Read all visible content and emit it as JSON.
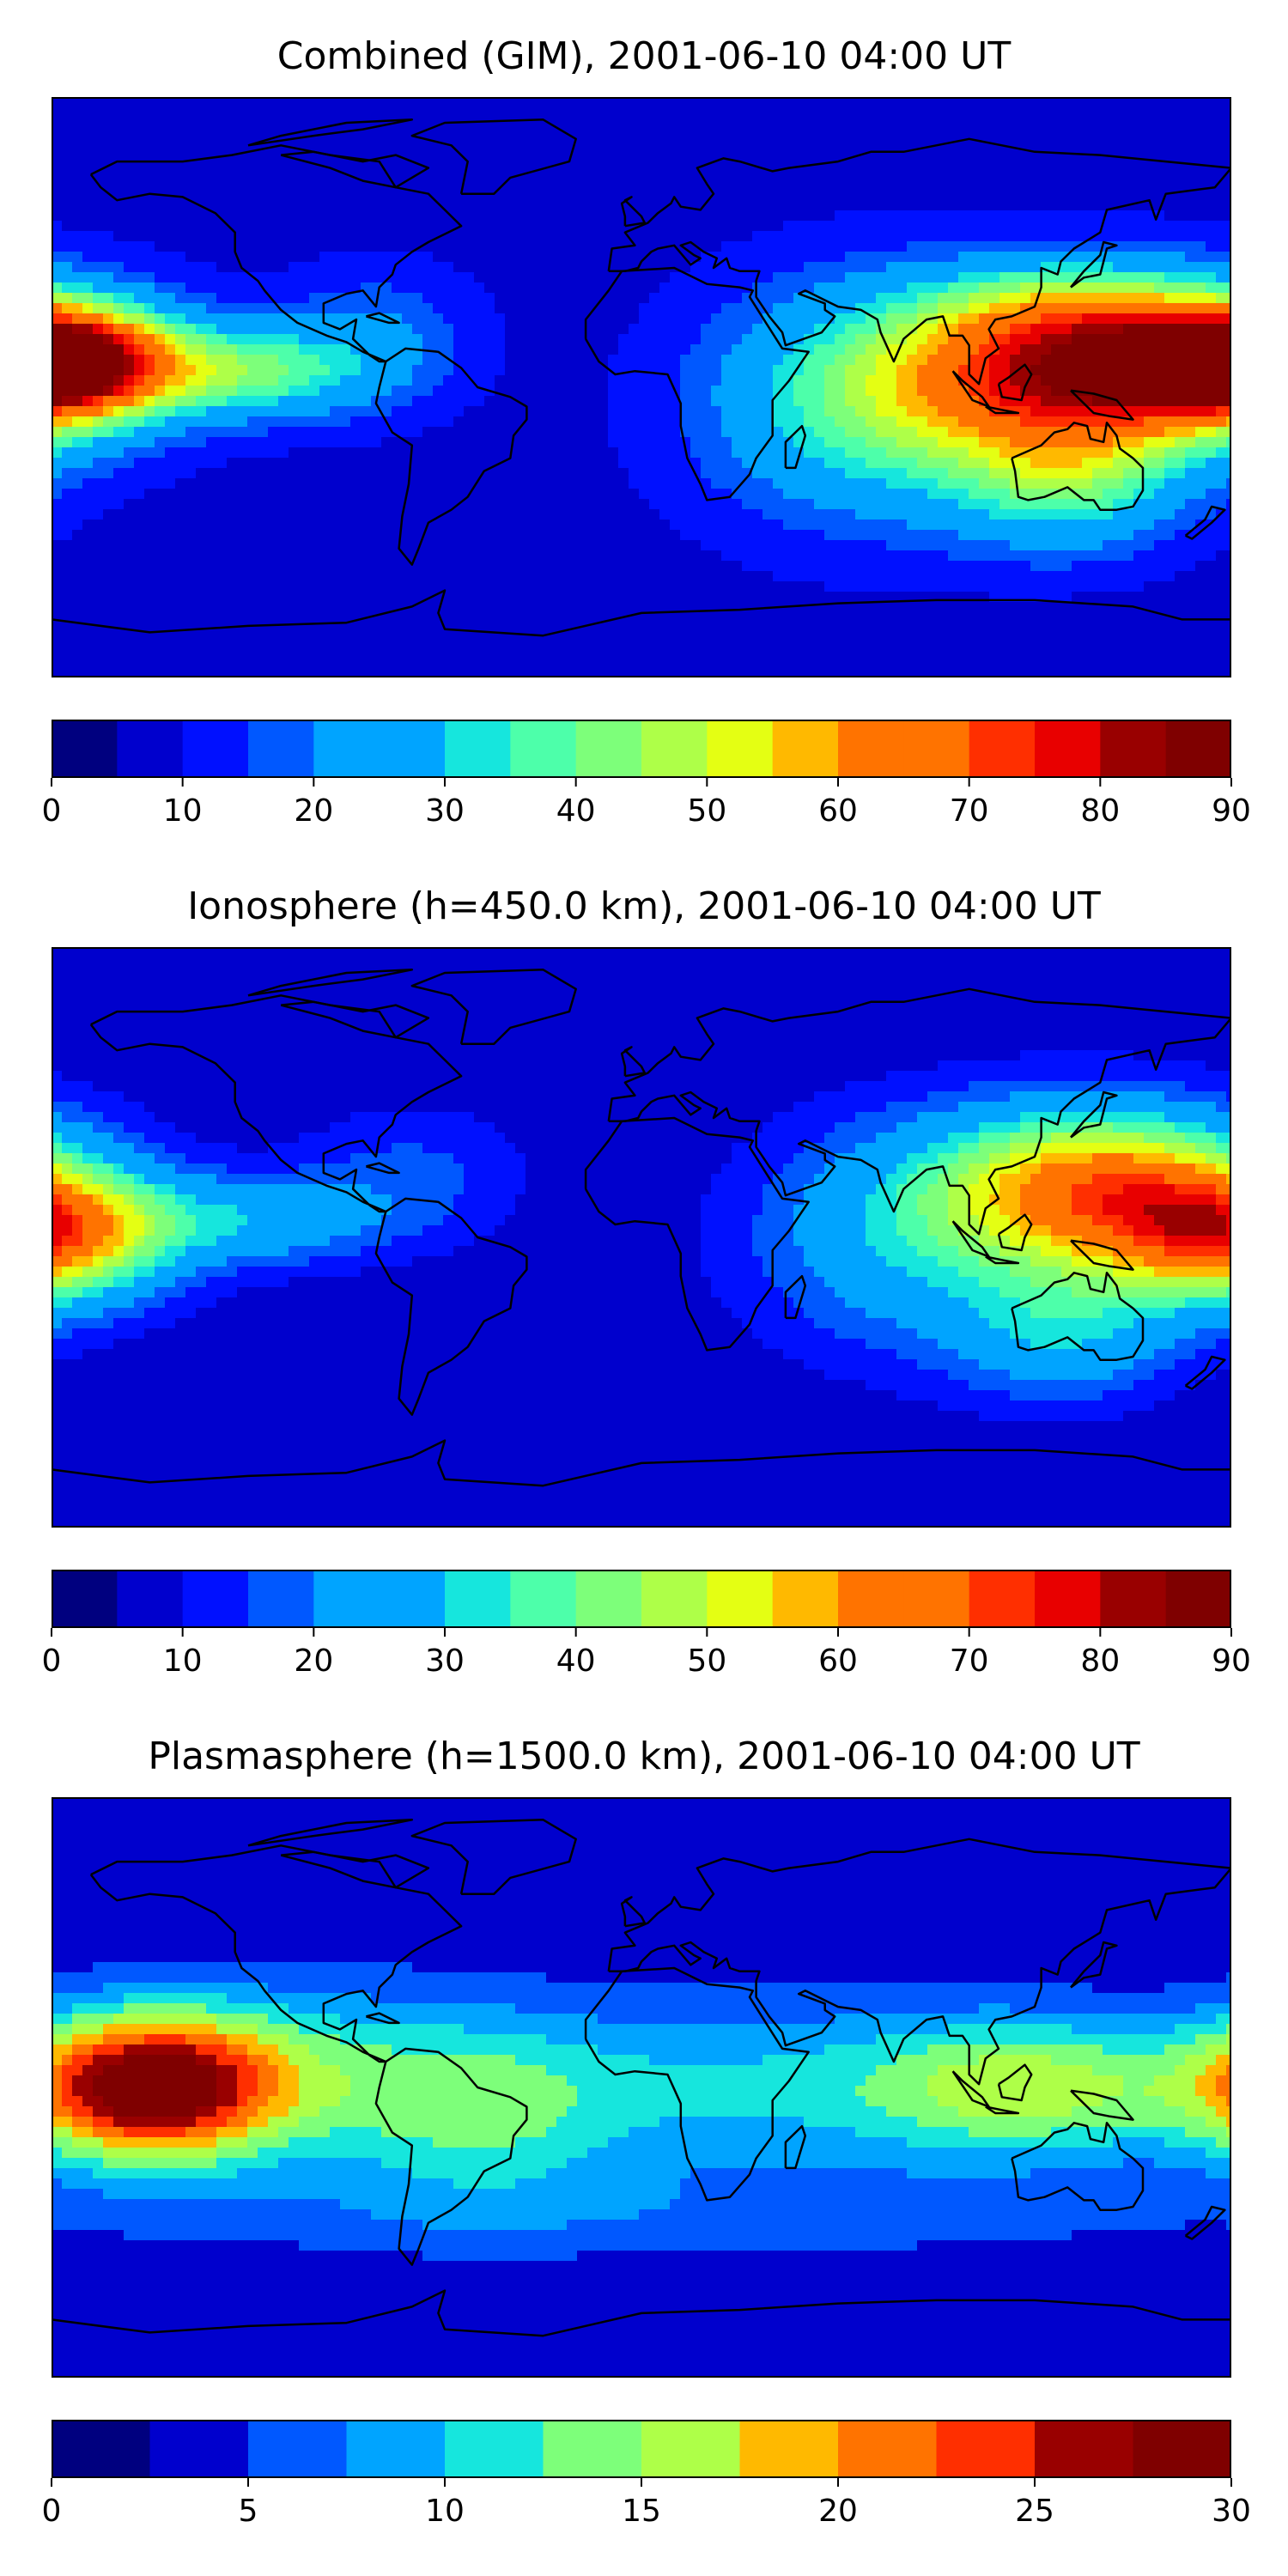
{
  "palette": [
    "#00007f",
    "#0000cd",
    "#0010ff",
    "#0058ff",
    "#00a4ff",
    "#16e6dd",
    "#4dffaa",
    "#7dff7a",
    "#aeff48",
    "#e4ff13",
    "#ffb900",
    "#ff7300",
    "#ff2f00",
    "#e80000",
    "#990000",
    "#7f0000"
  ],
  "panels": [
    {
      "title": "Combined (GIM), 2001-06-10 04:00 UT",
      "levels": [
        0,
        5,
        10,
        15,
        20,
        25,
        30,
        35,
        40,
        45,
        50,
        55,
        60,
        65,
        70,
        75,
        80,
        85,
        90
      ],
      "ticks": [
        "0",
        "10",
        "20",
        "30",
        "40",
        "50",
        "60",
        "70",
        "80",
        "90"
      ],
      "field": {
        "base": 8,
        "blobs": [
          {
            "lon": 140,
            "lat": 5,
            "slon": 40,
            "slat": 18,
            "amp": 72
          },
          {
            "lon": 130,
            "lat": 25,
            "slon": 30,
            "slat": 10,
            "amp": 15
          },
          {
            "lon": -175,
            "lat": 8,
            "slon": 22,
            "slat": 12,
            "amp": 66
          },
          {
            "lon": -120,
            "lat": 5,
            "slon": 25,
            "slat": 10,
            "amp": 30
          },
          {
            "lon": 70,
            "lat": -5,
            "slon": 35,
            "slat": 25,
            "amp": 28
          },
          {
            "lon": 130,
            "lat": -30,
            "slon": 25,
            "slat": 15,
            "amp": 25
          },
          {
            "lon": -80,
            "lat": 15,
            "slon": 20,
            "slat": 15,
            "amp": 12
          }
        ]
      }
    },
    {
      "title": "Ionosphere  (h=450.0 km), 2001-06-10 04:00 UT",
      "levels": [
        0,
        5,
        10,
        15,
        20,
        25,
        30,
        35,
        40,
        45,
        50,
        55,
        60,
        65,
        70,
        75,
        80,
        85,
        90
      ],
      "ticks": [
        "0",
        "10",
        "20",
        "30",
        "40",
        "50",
        "60",
        "70",
        "80",
        "90"
      ],
      "field": {
        "base": 6,
        "blobs": [
          {
            "lon": 140,
            "lat": 15,
            "slon": 35,
            "slat": 18,
            "amp": 55
          },
          {
            "lon": -180,
            "lat": 0,
            "slon": 25,
            "slat": 15,
            "amp": 48
          },
          {
            "lon": -120,
            "lat": 5,
            "slon": 30,
            "slat": 10,
            "amp": 20
          },
          {
            "lon": 80,
            "lat": 0,
            "slon": 35,
            "slat": 25,
            "amp": 20
          },
          {
            "lon": 130,
            "lat": -30,
            "slon": 25,
            "slat": 15,
            "amp": 20
          },
          {
            "lon": -70,
            "lat": 20,
            "slon": 25,
            "slat": 15,
            "amp": 10
          }
        ]
      }
    },
    {
      "title": "Plasmasphere (h=1500.0 km), 2001-06-10 04:00 UT",
      "levels": [
        0,
        2.5,
        5,
        7.5,
        10,
        12.5,
        15,
        17.5,
        20,
        22.5,
        25,
        27.5,
        30
      ],
      "ticks": [
        "0",
        "5",
        "10",
        "15",
        "20",
        "25",
        "30"
      ],
      "field": {
        "base": 3,
        "blobs": [
          {
            "lon": -150,
            "lat": 0,
            "slon": 28,
            "slat": 16,
            "amp": 26
          },
          {
            "lon": -100,
            "lat": 5,
            "slon": 40,
            "slat": 20,
            "amp": 6
          },
          {
            "lon": 120,
            "lat": 0,
            "slon": 35,
            "slat": 15,
            "amp": 11
          },
          {
            "lon": 30,
            "lat": 0,
            "slon": 70,
            "slat": 20,
            "amp": 7
          },
          {
            "lon": -50,
            "lat": -10,
            "slon": 30,
            "slat": 20,
            "amp": 6
          },
          {
            "lon": 0,
            "lat": -40,
            "slon": 150,
            "slat": 10,
            "amp": 3
          }
        ]
      }
    }
  ],
  "coastlines": [
    [
      [
        -168,
        66
      ],
      [
        -160,
        70
      ],
      [
        -140,
        70
      ],
      [
        -125,
        72
      ],
      [
        -110,
        75
      ],
      [
        -95,
        72
      ],
      [
        -80,
        70
      ],
      [
        -75,
        62
      ],
      [
        -65,
        60
      ],
      [
        -60,
        55
      ],
      [
        -55,
        50
      ],
      [
        -65,
        45
      ],
      [
        -70,
        42
      ],
      [
        -75,
        38
      ],
      [
        -76,
        35
      ],
      [
        -80,
        31
      ],
      [
        -81,
        25
      ],
      [
        -85,
        30
      ],
      [
        -90,
        29
      ],
      [
        -97,
        26
      ],
      [
        -97,
        20
      ],
      [
        -92,
        18
      ],
      [
        -87,
        21
      ],
      [
        -88,
        15
      ],
      [
        -83,
        10
      ],
      [
        -80,
        8
      ],
      [
        -78,
        8
      ],
      [
        -85,
        11
      ],
      [
        -90,
        14
      ],
      [
        -96,
        16
      ],
      [
        -105,
        20
      ],
      [
        -110,
        24
      ],
      [
        -115,
        30
      ],
      [
        -117,
        33
      ],
      [
        -122,
        37
      ],
      [
        -124,
        42
      ],
      [
        -124,
        48
      ],
      [
        -130,
        54
      ],
      [
        -140,
        59
      ],
      [
        -150,
        60
      ],
      [
        -160,
        58
      ],
      [
        -165,
        62
      ],
      [
        -168,
        66
      ]
    ],
    [
      [
        -78,
        8
      ],
      [
        -72,
        12
      ],
      [
        -62,
        11
      ],
      [
        -55,
        6
      ],
      [
        -50,
        0
      ],
      [
        -40,
        -3
      ],
      [
        -35,
        -6
      ],
      [
        -35,
        -10
      ],
      [
        -39,
        -15
      ],
      [
        -40,
        -22
      ],
      [
        -48,
        -26
      ],
      [
        -53,
        -34
      ],
      [
        -58,
        -38
      ],
      [
        -65,
        -42
      ],
      [
        -68,
        -50
      ],
      [
        -70,
        -55
      ],
      [
        -74,
        -50
      ],
      [
        -73,
        -40
      ],
      [
        -71,
        -30
      ],
      [
        -70,
        -18
      ],
      [
        -76,
        -14
      ],
      [
        -81,
        -5
      ],
      [
        -80,
        0
      ],
      [
        -78,
        8
      ]
    ],
    [
      [
        -17,
        15
      ],
      [
        -17,
        21
      ],
      [
        -10,
        30
      ],
      [
        -6,
        36
      ],
      [
        10,
        37
      ],
      [
        20,
        32
      ],
      [
        30,
        31
      ],
      [
        34,
        30
      ],
      [
        33,
        28
      ],
      [
        38,
        20
      ],
      [
        43,
        12
      ],
      [
        51,
        11
      ],
      [
        45,
        2
      ],
      [
        40,
        -4
      ],
      [
        40,
        -15
      ],
      [
        35,
        -22
      ],
      [
        33,
        -27
      ],
      [
        27,
        -34
      ],
      [
        20,
        -35
      ],
      [
        18,
        -30
      ],
      [
        14,
        -22
      ],
      [
        12,
        -12
      ],
      [
        12,
        -5
      ],
      [
        8,
        4
      ],
      [
        -2,
        5
      ],
      [
        -8,
        4
      ],
      [
        -13,
        8
      ],
      [
        -17,
        15
      ]
    ],
    [
      [
        -10,
        36
      ],
      [
        -9,
        43
      ],
      [
        -2,
        44
      ],
      [
        -5,
        48
      ],
      [
        2,
        51
      ],
      [
        5,
        54
      ],
      [
        9,
        57
      ],
      [
        10,
        59
      ],
      [
        12,
        56
      ],
      [
        18,
        55
      ],
      [
        22,
        60
      ],
      [
        20,
        63
      ],
      [
        17,
        68
      ],
      [
        25,
        71
      ],
      [
        30,
        70
      ],
      [
        40,
        67
      ],
      [
        45,
        68
      ],
      [
        60,
        70
      ],
      [
        70,
        73
      ],
      [
        80,
        73
      ],
      [
        100,
        77
      ],
      [
        120,
        73
      ],
      [
        140,
        72
      ],
      [
        160,
        70
      ],
      [
        180,
        68
      ],
      [
        175,
        62
      ],
      [
        160,
        60
      ],
      [
        157,
        52
      ],
      [
        155,
        58
      ],
      [
        142,
        55
      ],
      [
        140,
        48
      ],
      [
        132,
        43
      ],
      [
        128,
        39
      ],
      [
        127,
        35
      ],
      [
        122,
        37
      ],
      [
        122,
        31
      ],
      [
        120,
        25
      ],
      [
        113,
        22
      ],
      [
        108,
        21
      ],
      [
        106,
        18
      ],
      [
        109,
        12
      ],
      [
        105,
        9
      ],
      [
        103,
        1
      ],
      [
        100,
        4
      ],
      [
        100,
        13
      ],
      [
        98,
        16
      ],
      [
        94,
        16
      ],
      [
        92,
        22
      ],
      [
        87,
        21
      ],
      [
        80,
        15
      ],
      [
        77,
        8
      ],
      [
        73,
        17
      ],
      [
        72,
        21
      ],
      [
        67,
        24
      ],
      [
        60,
        25
      ],
      [
        56,
        27
      ],
      [
        50,
        30
      ],
      [
        48,
        29
      ],
      [
        56,
        26
      ],
      [
        56,
        24
      ],
      [
        59,
        22
      ],
      [
        55,
        17
      ],
      [
        44,
        13
      ],
      [
        43,
        17
      ],
      [
        39,
        22
      ],
      [
        35,
        28
      ],
      [
        35,
        33
      ],
      [
        36,
        36
      ],
      [
        30,
        36
      ],
      [
        27,
        37
      ],
      [
        26,
        40
      ],
      [
        22,
        37
      ],
      [
        23,
        40
      ],
      [
        19,
        42
      ],
      [
        15,
        45
      ],
      [
        12,
        44
      ],
      [
        16,
        41
      ],
      [
        18,
        40
      ],
      [
        15,
        38
      ],
      [
        10,
        44
      ],
      [
        5,
        43
      ],
      [
        3,
        42
      ],
      [
        0,
        39
      ],
      [
        -1,
        37
      ],
      [
        -5,
        36
      ],
      [
        -10,
        36
      ]
    ],
    [
      [
        113,
        -22
      ],
      [
        114,
        -26
      ],
      [
        115,
        -34
      ],
      [
        118,
        -35
      ],
      [
        123,
        -34
      ],
      [
        130,
        -31
      ],
      [
        135,
        -35
      ],
      [
        138,
        -35
      ],
      [
        140,
        -38
      ],
      [
        145,
        -38
      ],
      [
        150,
        -37
      ],
      [
        153,
        -32
      ],
      [
        153,
        -25
      ],
      [
        150,
        -22
      ],
      [
        146,
        -19
      ],
      [
        145,
        -15
      ],
      [
        142,
        -11
      ],
      [
        141,
        -17
      ],
      [
        137,
        -16
      ],
      [
        136,
        -12
      ],
      [
        132,
        -11
      ],
      [
        130,
        -13
      ],
      [
        126,
        -14
      ],
      [
        122,
        -18
      ],
      [
        113,
        -22
      ]
    ],
    [
      [
        -55,
        60
      ],
      [
        -45,
        60
      ],
      [
        -40,
        65
      ],
      [
        -22,
        70
      ],
      [
        -20,
        77
      ],
      [
        -30,
        83
      ],
      [
        -60,
        82
      ],
      [
        -70,
        78
      ],
      [
        -58,
        75
      ],
      [
        -53,
        70
      ],
      [
        -55,
        60
      ]
    ],
    [
      [
        -5,
        50
      ],
      [
        1,
        51
      ],
      [
        0,
        53
      ],
      [
        -3,
        56
      ],
      [
        -5,
        58
      ],
      [
        -3,
        59
      ],
      [
        -6,
        57
      ],
      [
        -5,
        53
      ],
      [
        -5,
        50
      ]
    ],
    [
      [
        131,
        31
      ],
      [
        135,
        34
      ],
      [
        140,
        35
      ],
      [
        141,
        39
      ],
      [
        142,
        43
      ],
      [
        145,
        44
      ],
      [
        141,
        45
      ],
      [
        140,
        41
      ],
      [
        135,
        36
      ],
      [
        131,
        31
      ]
    ],
    [
      [
        95,
        5
      ],
      [
        98,
        2
      ],
      [
        104,
        -3
      ],
      [
        106,
        -6
      ],
      [
        101,
        -4
      ],
      [
        95,
        5
      ]
    ],
    [
      [
        109,
        1
      ],
      [
        112,
        3
      ],
      [
        117,
        7
      ],
      [
        119,
        4
      ],
      [
        117,
        0
      ],
      [
        116,
        -4
      ],
      [
        110,
        -3
      ],
      [
        109,
        1
      ]
    ],
    [
      [
        105,
        -6
      ],
      [
        110,
        -7
      ],
      [
        115,
        -8
      ],
      [
        108,
        -8
      ],
      [
        105,
        -6
      ]
    ],
    [
      [
        131,
        -1
      ],
      [
        138,
        -2
      ],
      [
        145,
        -4
      ],
      [
        150,
        -10
      ],
      [
        143,
        -9
      ],
      [
        138,
        -8
      ],
      [
        131,
        -1
      ]
    ],
    [
      [
        44,
        -25
      ],
      [
        47,
        -25
      ],
      [
        50,
        -15
      ],
      [
        49,
        -12
      ],
      [
        44,
        -17
      ],
      [
        44,
        -25
      ]
    ],
    [
      [
        -84,
        22
      ],
      [
        -77,
        20
      ],
      [
        -74,
        20
      ],
      [
        -80,
        23
      ],
      [
        -84,
        22
      ]
    ],
    [
      [
        -180,
        -72
      ],
      [
        -150,
        -76
      ],
      [
        -120,
        -74
      ],
      [
        -90,
        -73
      ],
      [
        -70,
        -68
      ],
      [
        -60,
        -63
      ],
      [
        -62,
        -70
      ],
      [
        -60,
        -75
      ],
      [
        -30,
        -77
      ],
      [
        0,
        -70
      ],
      [
        30,
        -69
      ],
      [
        60,
        -67
      ],
      [
        90,
        -66
      ],
      [
        120,
        -66
      ],
      [
        150,
        -68
      ],
      [
        165,
        -72
      ],
      [
        180,
        -72
      ]
    ],
    [
      [
        -110,
        72
      ],
      [
        -100,
        73
      ],
      [
        -85,
        70
      ],
      [
        -75,
        72
      ],
      [
        -65,
        68
      ],
      [
        -75,
        62
      ],
      [
        -85,
        64
      ],
      [
        -95,
        68
      ],
      [
        -110,
        72
      ]
    ],
    [
      [
        -120,
        75
      ],
      [
        -100,
        78
      ],
      [
        -85,
        80
      ],
      [
        -70,
        83
      ],
      [
        -90,
        82
      ],
      [
        -110,
        78
      ],
      [
        -120,
        75
      ]
    ],
    [
      [
        166,
        -46
      ],
      [
        172,
        -41
      ],
      [
        174,
        -37
      ],
      [
        178,
        -38
      ],
      [
        174,
        -42
      ],
      [
        168,
        -47
      ],
      [
        166,
        -46
      ]
    ]
  ]
}
